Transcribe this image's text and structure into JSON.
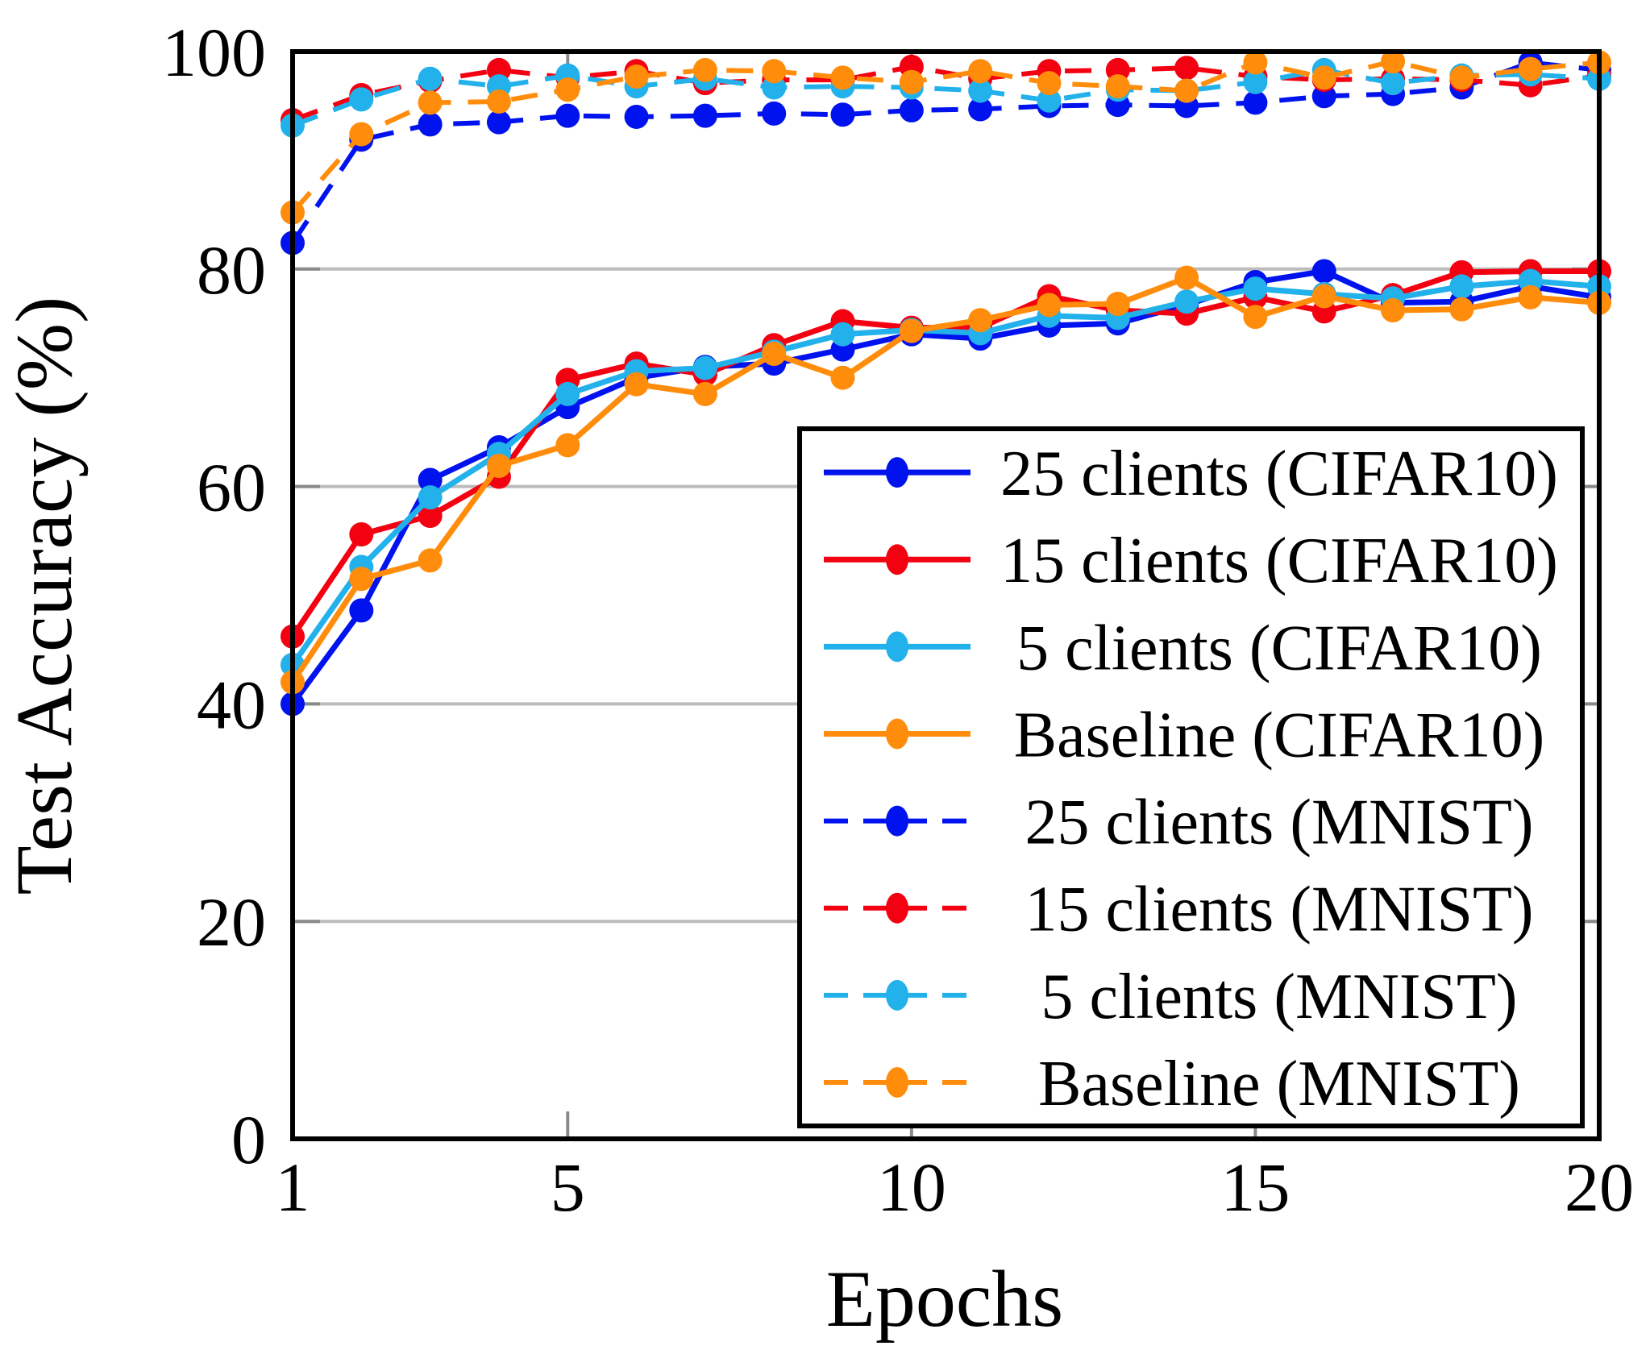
{
  "chart_data": {
    "type": "line",
    "title": "",
    "xlabel": "Epochs",
    "ylabel": "Test Accuracy (%)",
    "xlim": [
      1,
      20
    ],
    "ylim": [
      0,
      100
    ],
    "xticks": [
      1,
      5,
      10,
      15,
      20
    ],
    "yticks": [
      0,
      20,
      40,
      60,
      80,
      100
    ],
    "grid": "horizontal",
    "legend_position": "inside lower right",
    "x": [
      1,
      2,
      3,
      4,
      5,
      6,
      7,
      8,
      9,
      10,
      11,
      12,
      13,
      14,
      15,
      16,
      17,
      18,
      19,
      20
    ],
    "series": [
      {
        "name": "25 clients (CIFAR10)",
        "color": "#0012ee",
        "style": "solid",
        "values": [
          40.0,
          48.6,
          60.6,
          63.6,
          67.3,
          70.0,
          71.0,
          71.3,
          72.6,
          74.0,
          73.6,
          74.8,
          75.0,
          76.7,
          78.8,
          79.8,
          76.9,
          77.0,
          78.4,
          77.4
        ]
      },
      {
        "name": "15 clients (CIFAR10)",
        "color": "#f30011",
        "style": "solid",
        "values": [
          46.2,
          55.6,
          57.3,
          60.9,
          69.8,
          71.3,
          70.3,
          73.0,
          75.2,
          74.6,
          74.6,
          77.5,
          76.2,
          75.9,
          77.4,
          76.1,
          77.6,
          79.7,
          79.8,
          79.8
        ]
      },
      {
        "name": "5 clients (CIFAR10)",
        "color": "#22b1ea",
        "style": "solid",
        "values": [
          43.6,
          52.6,
          59.0,
          63.0,
          68.5,
          70.6,
          70.9,
          72.4,
          74.0,
          74.4,
          74.1,
          75.7,
          75.5,
          77.0,
          78.2,
          77.7,
          77.3,
          78.4,
          78.9,
          78.4
        ]
      },
      {
        "name": "Baseline (CIFAR10)",
        "color": "#ff8c0a",
        "style": "solid",
        "values": [
          42.0,
          51.5,
          53.2,
          61.9,
          63.8,
          69.4,
          68.5,
          72.2,
          70.0,
          74.3,
          75.3,
          76.7,
          76.8,
          79.2,
          75.6,
          77.5,
          76.2,
          76.3,
          77.4,
          76.9
        ]
      },
      {
        "name": "25 clients (MNIST)",
        "color": "#0012ee",
        "style": "dashed",
        "values": [
          82.4,
          91.9,
          93.3,
          93.5,
          94.1,
          94.0,
          94.1,
          94.3,
          94.2,
          94.6,
          94.7,
          95.0,
          95.1,
          95.0,
          95.3,
          95.9,
          96.1,
          96.7,
          99.0,
          98.3
        ]
      },
      {
        "name": "15 clients (MNIST)",
        "color": "#f30011",
        "style": "dashed",
        "values": [
          93.7,
          96.0,
          97.3,
          98.3,
          97.6,
          98.2,
          97.1,
          97.4,
          97.4,
          98.6,
          97.5,
          98.2,
          98.3,
          98.5,
          97.7,
          97.4,
          97.5,
          97.4,
          96.9,
          97.8
        ]
      },
      {
        "name": "5 clients (MNIST)",
        "color": "#22b1ea",
        "style": "dashed",
        "values": [
          93.2,
          95.6,
          97.5,
          96.8,
          97.8,
          96.8,
          97.5,
          96.7,
          96.8,
          96.7,
          96.4,
          95.5,
          96.5,
          96.4,
          97.2,
          98.3,
          97.1,
          97.8,
          97.9,
          97.5
        ]
      },
      {
        "name": "Baseline (MNIST)",
        "color": "#ff8c0a",
        "style": "dashed",
        "values": [
          85.2,
          92.4,
          95.3,
          95.4,
          96.5,
          97.7,
          98.3,
          98.2,
          97.6,
          97.2,
          98.2,
          97.1,
          96.8,
          96.4,
          99.0,
          97.6,
          99.1,
          97.6,
          98.4,
          99.0
        ]
      }
    ],
    "colors": {
      "axis": "#000000",
      "grid": "#bcbcbc",
      "tick": "#8a8a8a",
      "background": "#ffffff",
      "legend_border": "#000000",
      "legend_fill": "#ffffff"
    }
  },
  "axes": {
    "xlabel": "Epochs",
    "ylabel": "Test Accuracy (%)",
    "x_tick_labels": [
      "1",
      "5",
      "10",
      "15",
      "20"
    ],
    "y_tick_labels": [
      "0",
      "20",
      "40",
      "60",
      "80",
      "100"
    ]
  },
  "legend": {
    "entries": [
      "25 clients (CIFAR10)",
      "15 clients (CIFAR10)",
      "5 clients (CIFAR10)",
      "Baseline (CIFAR10)",
      "25 clients (MNIST)",
      "15 clients (MNIST)",
      "5 clients (MNIST)",
      "Baseline (MNIST)"
    ]
  }
}
